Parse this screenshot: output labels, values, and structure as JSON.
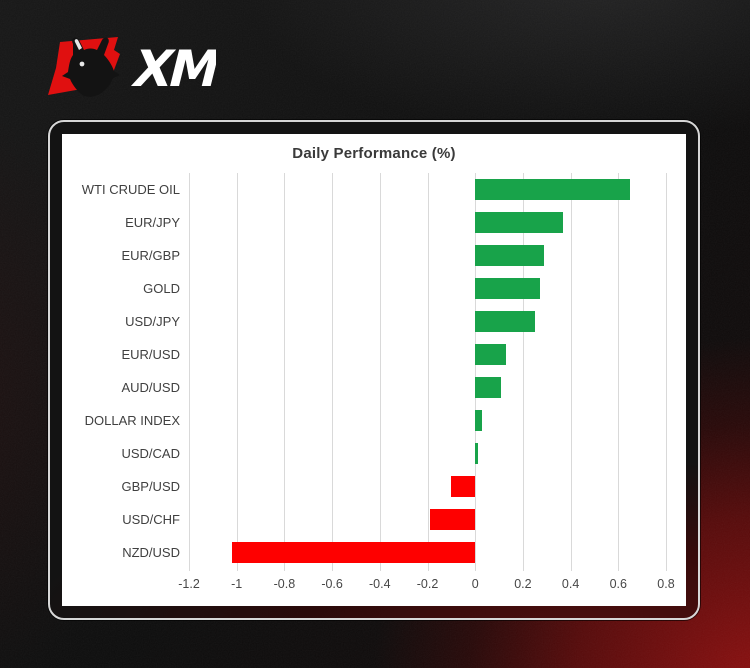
{
  "brand": {
    "logo_text": "XM",
    "bull_icon": "bull-icon",
    "logo_red": "#e01010",
    "logo_white": "#ffffff"
  },
  "chart_data": {
    "type": "bar",
    "orientation": "horizontal",
    "title": "Daily Performance (%)",
    "categories": [
      "WTI CRUDE OIL",
      "EUR/JPY",
      "EUR/GBP",
      "GOLD",
      "USD/JPY",
      "EUR/USD",
      "AUD/USD",
      "DOLLAR INDEX",
      "USD/CAD",
      "GBP/USD",
      "USD/CHF",
      "NZD/USD"
    ],
    "values": [
      0.65,
      0.37,
      0.29,
      0.27,
      0.25,
      0.13,
      0.11,
      0.03,
      0.01,
      -0.1,
      -0.19,
      -1.02
    ],
    "xlim": [
      -1.2,
      0.8
    ],
    "tick_values": [
      -1.2,
      -1,
      -0.8,
      -0.6,
      -0.4,
      -0.2,
      0,
      0.2,
      0.4,
      0.6,
      0.8
    ],
    "ticks": [
      "-1.2",
      "-1",
      "-0.8",
      "-0.6",
      "-0.4",
      "-0.2",
      "0",
      "0.2",
      "0.4",
      "0.6",
      "0.8"
    ],
    "grid": "vertical",
    "legend": "none",
    "positive_color": "#18a34a",
    "negative_color": "#fe0000",
    "gridline_color": "#d9d9d9",
    "title_color": "#3a3a3a",
    "label_color": "#404040",
    "tick_color": "#474747"
  }
}
